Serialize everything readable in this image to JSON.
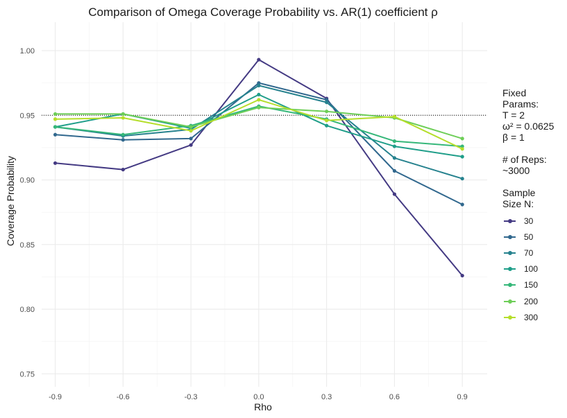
{
  "chart_data": {
    "type": "line",
    "title": "Comparison of Omega Coverage Probability vs. AR(1) coefficient ρ",
    "xlabel": "Rho",
    "ylabel": "Coverage Probability",
    "x": [
      -0.9,
      -0.6,
      -0.3,
      0.0,
      0.3,
      0.6,
      0.9
    ],
    "x_tick_labels": [
      "-0.9",
      "-0.6",
      "-0.3",
      "0.0",
      "0.3",
      "0.6",
      "0.9"
    ],
    "y_tick_labels": [
      "0.75",
      "0.80",
      "0.85",
      "0.90",
      "0.95",
      "1.00"
    ],
    "y_ticks": [
      0.75,
      0.8,
      0.85,
      0.9,
      0.95,
      1.0
    ],
    "xlim": [
      -0.96,
      1.01
    ],
    "ylim": [
      0.74,
      1.022
    ],
    "reference_line": {
      "y": 0.95,
      "style": "dotted"
    },
    "grid": true,
    "legend_placement": "right",
    "series": [
      {
        "name": "30",
        "color": "#443a83",
        "values": [
          0.913,
          0.908,
          0.927,
          0.993,
          0.963,
          0.889,
          0.826
        ]
      },
      {
        "name": "50",
        "color": "#31688e",
        "values": [
          0.935,
          0.931,
          0.932,
          0.975,
          0.962,
          0.907,
          0.881
        ]
      },
      {
        "name": "70",
        "color": "#26828e",
        "values": [
          0.941,
          0.934,
          0.939,
          0.973,
          0.96,
          0.917,
          0.901
        ]
      },
      {
        "name": "100",
        "color": "#1f9e89",
        "values": [
          0.941,
          0.951,
          0.94,
          0.966,
          0.942,
          0.926,
          0.918
        ]
      },
      {
        "name": "150",
        "color": "#35b779",
        "values": [
          0.941,
          0.935,
          0.942,
          0.957,
          0.947,
          0.93,
          0.926
        ]
      },
      {
        "name": "200",
        "color": "#6ece58",
        "values": [
          0.951,
          0.951,
          0.941,
          0.956,
          0.953,
          0.948,
          0.932
        ]
      },
      {
        "name": "300",
        "color": "#b5de2b",
        "values": [
          0.947,
          0.948,
          0.938,
          0.962,
          0.946,
          0.949,
          0.924
        ]
      }
    ]
  },
  "legend": {
    "fixed_params": "Fixed\nParams:\nT = 2\nω² = 0.0625\nβ = 1",
    "reps": "# of Reps:\n~3000",
    "size_title": "Sample\nSize N:"
  }
}
